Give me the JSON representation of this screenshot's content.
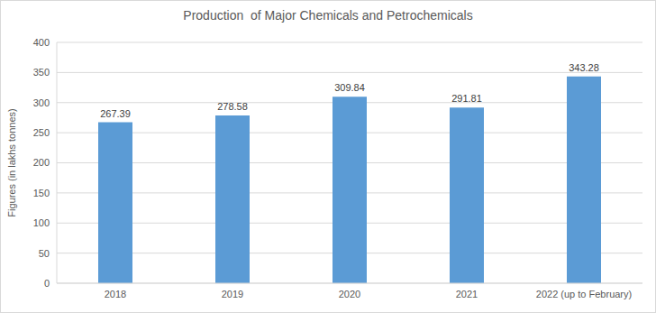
{
  "chart_data": {
    "type": "bar",
    "title": "Production  of Major Chemicals and Petrochemicals",
    "ylabel": "Figures (in lakhs tonnes)",
    "categories": [
      "2018",
      "2019",
      "2020",
      "2021",
      "2022 (up to February)"
    ],
    "values": [
      267.39,
      278.58,
      309.84,
      291.81,
      343.28
    ],
    "color": "#5b9bd5",
    "ylim": [
      0,
      400
    ],
    "yticks": [
      0,
      50,
      100,
      150,
      200,
      250,
      300,
      350,
      400
    ],
    "grid": true,
    "data_labels": true
  }
}
